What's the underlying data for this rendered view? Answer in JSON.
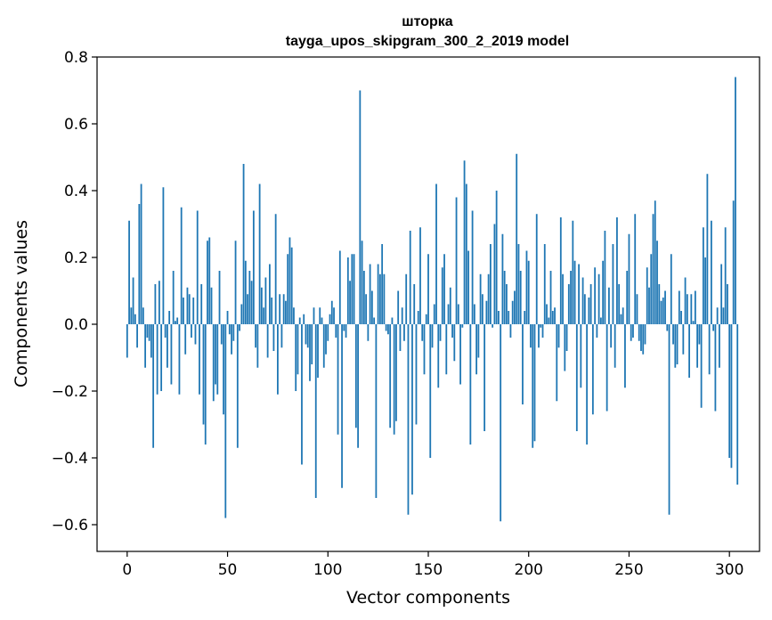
{
  "chart_data": {
    "type": "bar",
    "title_line1": "шторка",
    "title_line2": "tayga_upos_skipgram_300_2_2019 model",
    "xlabel": "Vector components",
    "ylabel": "Components values",
    "xlim": [
      -15,
      315
    ],
    "ylim": [
      -0.68,
      0.8
    ],
    "xticks": [
      0,
      50,
      100,
      150,
      200,
      250,
      300
    ],
    "xtick_labels": [
      "0",
      "50",
      "100",
      "150",
      "200",
      "250",
      "300"
    ],
    "yticks": [
      -0.6,
      -0.4,
      -0.2,
      0.0,
      0.2,
      0.4,
      0.6,
      0.8
    ],
    "ytick_labels": [
      "−0.6",
      "−0.4",
      "−0.2",
      "0.0",
      "0.2",
      "0.4",
      "0.6",
      "0.8"
    ],
    "color": "#1f77b4",
    "values": [
      -0.1,
      0.31,
      0.05,
      0.14,
      0.03,
      -0.07,
      0.36,
      0.42,
      0.05,
      -0.13,
      -0.04,
      -0.05,
      -0.1,
      -0.37,
      0.12,
      -0.21,
      0.13,
      -0.2,
      0.41,
      -0.04,
      -0.13,
      0.04,
      -0.18,
      0.16,
      0.01,
      0.02,
      -0.21,
      0.35,
      0.08,
      -0.09,
      0.11,
      0.09,
      -0.04,
      0.08,
      -0.06,
      0.34,
      -0.21,
      0.12,
      -0.3,
      -0.36,
      0.25,
      0.26,
      0.11,
      -0.23,
      -0.18,
      -0.21,
      0.16,
      -0.06,
      -0.27,
      -0.58,
      0.04,
      -0.03,
      -0.09,
      -0.05,
      0.25,
      -0.37,
      -0.02,
      0.06,
      0.48,
      0.19,
      0.09,
      0.16,
      0.13,
      0.34,
      -0.07,
      -0.13,
      0.42,
      0.11,
      0.05,
      0.14,
      -0.1,
      0.18,
      0.08,
      -0.08,
      0.33,
      -0.21,
      0.09,
      -0.07,
      0.09,
      0.07,
      0.21,
      0.26,
      0.23,
      0.05,
      -0.2,
      -0.15,
      0.02,
      -0.42,
      0.03,
      -0.06,
      -0.07,
      -0.17,
      -0.12,
      0.05,
      -0.52,
      -0.16,
      0.05,
      0.02,
      -0.13,
      -0.09,
      -0.05,
      0.03,
      0.07,
      0.05,
      -0.04,
      -0.33,
      0.22,
      -0.49,
      -0.02,
      -0.04,
      0.2,
      0.13,
      0.21,
      0.21,
      -0.31,
      -0.37,
      0.7,
      0.25,
      0.16,
      0.09,
      -0.05,
      0.18,
      0.1,
      0.02,
      -0.52,
      0.18,
      0.15,
      0.24,
      0.15,
      -0.02,
      -0.03,
      -0.31,
      0.02,
      -0.33,
      -0.29,
      0.1,
      -0.08,
      0.05,
      -0.05,
      0.15,
      -0.57,
      0.28,
      -0.51,
      0.12,
      -0.3,
      0.04,
      0.29,
      -0.05,
      -0.15,
      0.03,
      0.21,
      -0.4,
      -0.07,
      0.06,
      0.42,
      -0.19,
      -0.05,
      0.17,
      0.21,
      -0.15,
      0.06,
      0.11,
      -0.04,
      -0.11,
      0.38,
      0.06,
      -0.18,
      -0.01,
      0.49,
      0.42,
      0.22,
      -0.36,
      0.34,
      0.06,
      -0.15,
      -0.1,
      0.15,
      0.09,
      -0.32,
      0.07,
      0.15,
      0.24,
      -0.01,
      0.3,
      0.4,
      0.04,
      -0.59,
      0.27,
      0.16,
      0.12,
      0.04,
      -0.04,
      0.07,
      0.1,
      0.51,
      0.24,
      0.16,
      -0.24,
      0.04,
      0.22,
      0.19,
      -0.07,
      -0.37,
      -0.35,
      0.33,
      -0.07,
      -0.01,
      -0.04,
      0.24,
      0.06,
      0.02,
      0.16,
      0.04,
      0.05,
      -0.23,
      -0.07,
      0.32,
      0.15,
      -0.14,
      -0.08,
      0.12,
      0.16,
      0.31,
      0.19,
      -0.32,
      0.18,
      -0.19,
      0.14,
      0.09,
      -0.36,
      0.08,
      0.12,
      -0.27,
      0.17,
      -0.04,
      0.15,
      0.02,
      0.19,
      0.28,
      -0.26,
      0.11,
      -0.07,
      0.24,
      -0.13,
      0.32,
      0.12,
      0.03,
      0.05,
      -0.19,
      0.16,
      0.27,
      -0.05,
      -0.04,
      0.33,
      0.09,
      -0.05,
      -0.08,
      -0.09,
      -0.06,
      0.17,
      0.11,
      0.21,
      0.33,
      0.37,
      0.25,
      0.12,
      0.07,
      0.08,
      0.1,
      -0.02,
      -0.57,
      0.21,
      -0.06,
      -0.13,
      -0.12,
      0.1,
      0.04,
      -0.09,
      0.14,
      0.09,
      -0.16,
      0.09,
      0.01,
      0.1,
      -0.13,
      -0.06,
      -0.25,
      0.29,
      0.2,
      0.45,
      -0.15,
      0.31,
      -0.02,
      -0.26,
      0.05,
      -0.13,
      0.18,
      0.05,
      0.29,
      0.12,
      -0.4,
      -0.43,
      0.37,
      0.74,
      -0.48
    ]
  }
}
